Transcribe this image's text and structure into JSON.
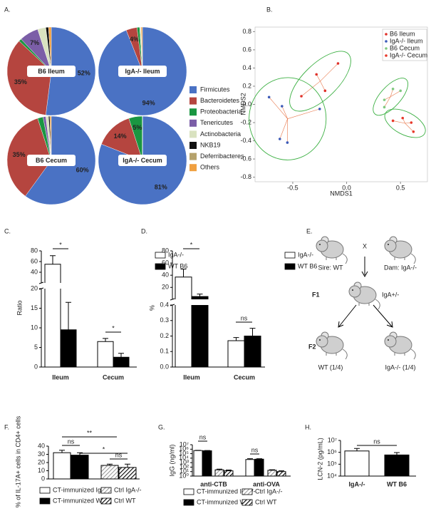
{
  "chart_data": [
    {
      "type": "pie",
      "panel": "A.",
      "categories": [
        "Firmicutes",
        "Bacteroidetes",
        "Proteobacteria",
        "Tenericutes",
        "Actinobacteria",
        "NKB19",
        "Deferribacteres",
        "Others"
      ],
      "colors": [
        "#4a72c4",
        "#b5453f",
        "#1a9641",
        "#7b5ea7",
        "#d9e2c0",
        "#111111",
        "#b5a26c",
        "#f0a040"
      ],
      "pies": [
        {
          "title": "B6 Ileum",
          "values": [
            52,
            35,
            1,
            7,
            3,
            1,
            0,
            1
          ],
          "value_labels": [
            "52%",
            "35%",
            null,
            "7%",
            null,
            null,
            null,
            null
          ]
        },
        {
          "title": "IgA-/- Ileum",
          "values": [
            94,
            4,
            1,
            0,
            0.5,
            0,
            0,
            0.5
          ],
          "value_labels": [
            "94%",
            "4%",
            null,
            null,
            null,
            null,
            null,
            null
          ]
        },
        {
          "title": "B6 Cecum",
          "values": [
            60,
            35,
            2,
            1,
            1,
            0.5,
            0,
            0.5
          ],
          "value_labels": [
            "60%",
            "35%",
            null,
            null,
            null,
            null,
            null,
            null
          ]
        },
        {
          "title": "IgA-/- Cecum",
          "values": [
            81,
            14,
            5,
            0,
            0,
            0,
            0,
            0
          ],
          "value_labels": [
            "81%",
            "14%",
            "5%",
            null,
            null,
            null,
            null,
            null
          ]
        }
      ]
    },
    {
      "type": "scatter",
      "panel": "B.",
      "xlabel": "NMDS1",
      "ylabel": "NMDS2",
      "xlim": [
        -0.85,
        0.75
      ],
      "ylim": [
        -0.85,
        0.85
      ],
      "xticks": [
        -0.5,
        {
          "value": 0,
          "label": "0.0"
        },
        0.5
      ],
      "yticks": [
        -0.8,
        -0.6,
        -0.4,
        -0.2,
        {
          "value": 0,
          "label": "0.0"
        },
        0.2,
        0.4,
        0.6,
        0.8
      ],
      "ellipses": true,
      "legend": "upper right",
      "series": [
        {
          "name": "B6 Ileum",
          "color": "#e0312a",
          "x": [
            -0.42,
            -0.28,
            -0.08,
            -0.2
          ],
          "values": [
            0.09,
            0.33,
            0.45,
            0.15
          ]
        },
        {
          "name": "IgA-/- Ileum",
          "color": "#3c5ab8",
          "x": [
            -0.72,
            -0.62,
            -0.55,
            -0.25,
            -0.6
          ],
          "values": [
            0.08,
            -0.38,
            -0.42,
            -0.05,
            -0.02
          ]
        },
        {
          "name": "B6 Cecum",
          "color": "#7fc97f",
          "x": [
            0.35,
            0.43,
            0.5,
            0.35
          ],
          "values": [
            0.05,
            0.17,
            0.15,
            -0.03
          ]
        },
        {
          "name": "IgA-/- Cecum",
          "color": "#e8392b",
          "x": [
            0.43,
            0.52,
            0.6,
            0.62
          ],
          "values": [
            -0.18,
            -0.15,
            -0.2,
            -0.3
          ]
        }
      ]
    },
    {
      "type": "bar",
      "panel": "C.",
      "ylabel": "Ratio",
      "categories": [
        "Ileum",
        "Cecum"
      ],
      "ylim": [
        0,
        80
      ],
      "ybreak": 20,
      "yticks": [
        0,
        5,
        10,
        15,
        20,
        40,
        60,
        80
      ],
      "series": [
        {
          "name": "IgA-/-",
          "color": "#ffffff",
          "values": [
            55,
            6.5
          ],
          "errors": [
            16,
            0.8
          ]
        },
        {
          "name": "WT B6",
          "color": "#000000",
          "values": [
            9.5,
            2.5
          ],
          "errors": [
            7,
            1
          ]
        }
      ],
      "annotations": [
        "*",
        "*"
      ]
    },
    {
      "type": "bar",
      "panel": "D.",
      "ylabel": "%",
      "categories": [
        "Ileum",
        "Cecum"
      ],
      "ylim": [
        0,
        80
      ],
      "ybreak": 0.4,
      "yticks": [
        {
          "value": 0,
          "label": "0.0"
        },
        0.1,
        0.2,
        0.3,
        0.4,
        20,
        40,
        60,
        80
      ],
      "series": [
        {
          "name": "IgA-/-",
          "color": "#ffffff",
          "values": [
            37,
            0.17
          ],
          "errors": [
            13,
            0.02
          ]
        },
        {
          "name": "WT B6",
          "color": "#000000",
          "values": [
            5,
            0.2
          ],
          "errors": [
            4,
            0.05
          ]
        }
      ],
      "annotations": [
        "*",
        "ns"
      ]
    },
    {
      "type": "bar",
      "panel": "F.",
      "ylabel": "% of IL-17A+ cells in CD4+ cells",
      "ylim": [
        0,
        40
      ],
      "yticks": [
        0,
        10,
        20,
        30,
        40
      ],
      "series": [
        {
          "name": "CT-immunized IgA-/-",
          "color": "#ffffff",
          "values": [
            32
          ],
          "errors": [
            3
          ]
        },
        {
          "name": "CT-immunized WT",
          "color": "#000000",
          "values": [
            29
          ],
          "errors": [
            3
          ]
        },
        {
          "name": "Ctrl IgA-/-",
          "color": "#999999",
          "pattern": "hatch",
          "values": [
            16.5
          ],
          "errors": [
            1.5
          ]
        },
        {
          "name": "Ctrl WT",
          "color": "#000000",
          "pattern": "hatch",
          "values": [
            14
          ],
          "errors": [
            4
          ]
        }
      ],
      "annotations": [
        "**",
        "ns",
        "*",
        "ns"
      ]
    },
    {
      "type": "bar",
      "panel": "G.",
      "ylabel": "IgG (ng/ml)",
      "categories": [
        "anti-CTB",
        "anti-OVA"
      ],
      "log": true,
      "ylim": [
        1,
        10000000
      ],
      "yticks": [
        {
          "value": 1,
          "label": "10⁰"
        },
        {
          "value": 10,
          "label": "10¹"
        },
        {
          "value": 100,
          "label": "10²"
        },
        {
          "value": 1000,
          "label": "10³"
        },
        {
          "value": 10000,
          "label": "10⁴"
        },
        {
          "value": 100000,
          "label": "10⁵"
        },
        {
          "value": 1000000,
          "label": "10⁶"
        },
        {
          "value": 10000000,
          "label": "10⁷"
        }
      ],
      "series": [
        {
          "name": "CT-immunized IgA-/-",
          "color": "#ffffff",
          "values": [
            500000,
            5000
          ],
          "errors": [
            60000,
            2500
          ]
        },
        {
          "name": "CT-immunized WT",
          "color": "#000000",
          "values": [
            450000,
            6000
          ],
          "errors": [
            50000,
            1500
          ]
        },
        {
          "name": "Ctrl IgA-/-",
          "color": "#999999",
          "pattern": "hatch",
          "values": [
            25,
            20
          ],
          "errors": [
            10,
            6
          ]
        },
        {
          "name": "Ctrl WT",
          "color": "#000000",
          "pattern": "hatch",
          "values": [
            15,
            10
          ],
          "errors": [
            8,
            5
          ]
        }
      ],
      "annotations": [
        "ns",
        "ns"
      ]
    },
    {
      "type": "bar",
      "panel": "H.",
      "ylabel": "LCN-2 (pg/mL)",
      "categories": [
        "IgA-/-",
        "WT B6"
      ],
      "log": true,
      "ylim": [
        10000,
        10000000
      ],
      "yticks": [
        {
          "value": 10000,
          "label": "10⁴"
        },
        {
          "value": 100000,
          "label": "10⁵"
        },
        {
          "value": 1000000,
          "label": "10⁶"
        },
        {
          "value": 10000000,
          "label": "10⁷"
        }
      ],
      "series": [
        {
          "colors": [
            "#ffffff",
            "#000000"
          ],
          "values": [
            1300000,
            600000
          ],
          "errors": [
            800000,
            350000
          ]
        }
      ],
      "annotations": [
        "ns"
      ]
    }
  ],
  "diagram": {
    "panel": "E.",
    "sire": "Sire: WT",
    "cross": "X",
    "dam": "Dam: IgA-/-",
    "f1": "F1",
    "f1_genotype": "IgA+/-",
    "f2": "F2",
    "f2_wt": "WT (1/4)",
    "f2_ko": "IgA-/- (1/4)"
  }
}
